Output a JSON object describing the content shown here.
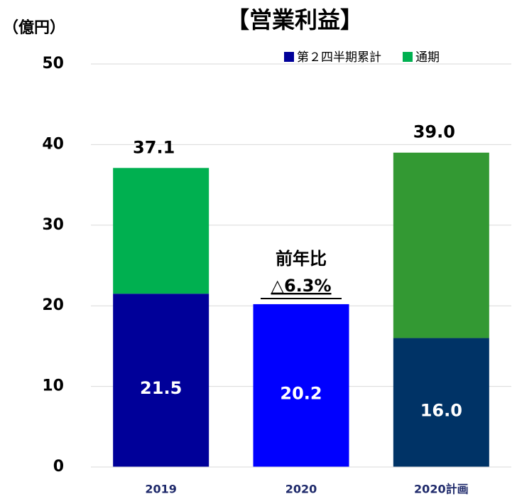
{
  "chart_data": {
    "type": "stacked_bar",
    "title": "【営業利益】",
    "y_axis_label": "（億円）",
    "categories": [
      "2019",
      "2020",
      "2020計画"
    ],
    "series": [
      {
        "name": "第２四半期累計",
        "color": "#000099",
        "colors": [
          "#000099",
          "#0000ff",
          "#003366"
        ],
        "values": [
          21.5,
          20.2,
          16.0
        ],
        "value_labels": [
          "21.5",
          "20.2",
          "16.0"
        ]
      },
      {
        "name": "通期",
        "color": "#00b050",
        "colors": [
          "#00b050",
          "#00b050",
          "#339933"
        ],
        "values": [
          15.6,
          null,
          23.0
        ]
      }
    ],
    "totals": [
      37.1,
      null,
      39.0
    ],
    "total_labels": [
      "37.1",
      null,
      "39.0"
    ],
    "annotation": {
      "line1": "前年比",
      "line2": "△6.3%"
    },
    "ylim": [
      0,
      50
    ],
    "yticks": [
      0,
      10,
      20,
      30,
      40,
      50
    ],
    "grid": true,
    "legend": "top-right"
  }
}
